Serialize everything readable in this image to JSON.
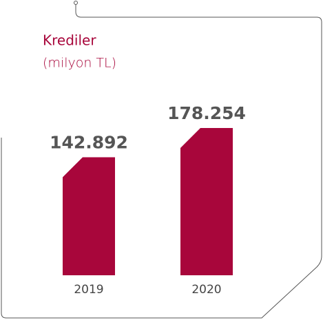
{
  "chart_data": {
    "type": "bar",
    "title": "Krediler",
    "subtitle": "(milyon TL)",
    "categories": [
      "2019",
      "2020"
    ],
    "values": [
      142892,
      178254
    ],
    "value_labels": [
      "142.892",
      "178.254"
    ],
    "color": "#a8063b"
  }
}
